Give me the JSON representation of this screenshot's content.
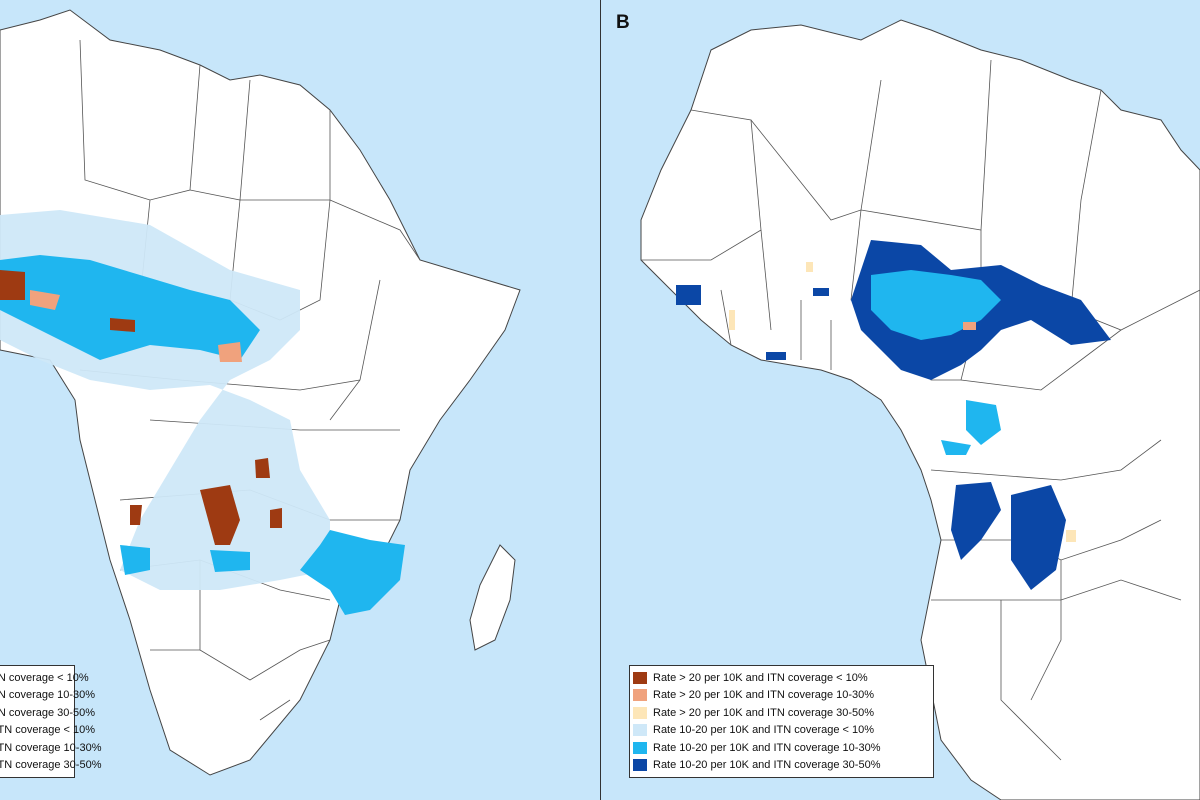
{
  "panels": {
    "a": {
      "letter": ""
    },
    "b": {
      "letter": "B"
    }
  },
  "colors": {
    "ocean": "#c7e6fa",
    "land": "#ffffff",
    "border": "#444444",
    "rate_gt20_itn_lt10": "#9e3a12",
    "rate_gt20_itn_10_30": "#f0a27d",
    "rate_gt20_itn_30_50": "#fde6b8",
    "rate_10_20_itn_lt10": "#cfe8f8",
    "rate_10_20_itn_10_30": "#1fb6ef",
    "rate_10_20_itn_30_50": "#0b47a6"
  },
  "legend": {
    "items": [
      {
        "label": "Rate > 20 per 10K and ITN coverage < 10%",
        "color": "#9e3a12"
      },
      {
        "label": "Rate > 20 per 10K and ITN coverage 10-30%",
        "color": "#f0a27d"
      },
      {
        "label": "Rate > 20 per 10K and ITN coverage 30-50%",
        "color": "#fde6b8"
      },
      {
        "label": "Rate 10-20 per 10K and ITN coverage < 10%",
        "color": "#cfe8f8"
      },
      {
        "label": "Rate 10-20 per 10K and ITN coverage 10-30%",
        "color": "#1fb6ef"
      },
      {
        "label": "Rate 10-20 per 10K and ITN coverage 30-50%",
        "color": "#0b47a6"
      }
    ]
  }
}
